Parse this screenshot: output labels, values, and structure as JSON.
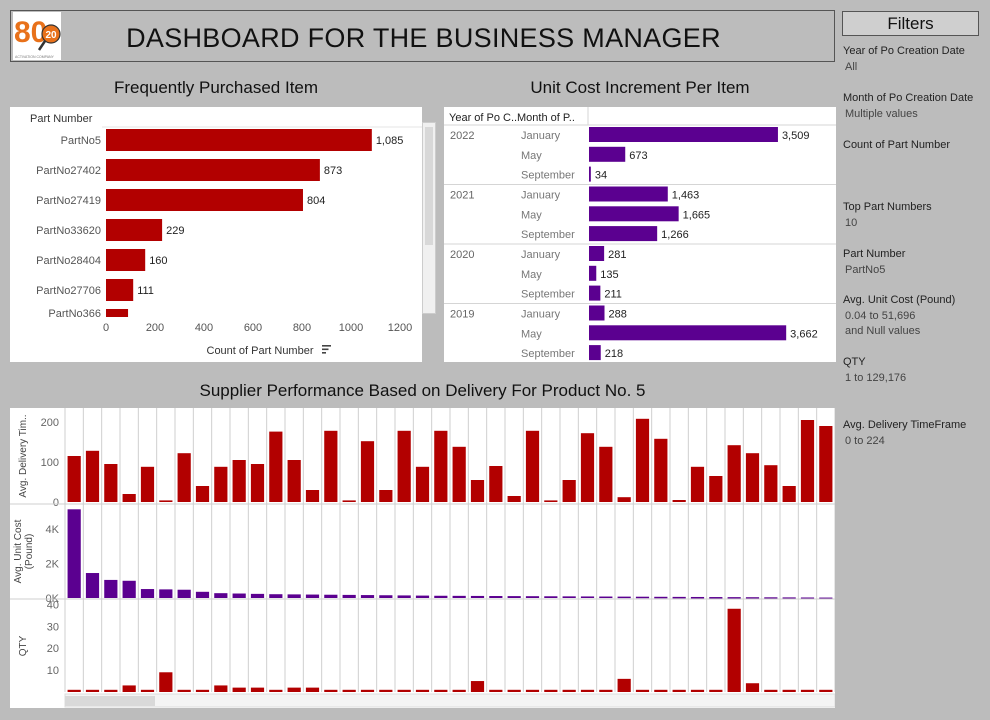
{
  "header": {
    "title": "DASHBOARD FOR THE BUSINESS MANAGER",
    "logo_number": "80",
    "logo_badge": "20",
    "logo_caption": "ACTIVATION COMPANY"
  },
  "filters": {
    "title": "Filters",
    "items": [
      {
        "label": "Year of Po Creation Date",
        "value": "All"
      },
      {
        "label": "Month of Po Creation Date",
        "value": "Multiple values"
      },
      {
        "label": "Count of Part Number",
        "value": ""
      },
      {
        "label": "Top Part Numbers",
        "value": "10"
      },
      {
        "label": "Part Number",
        "value": "PartNo5"
      },
      {
        "label": "Avg. Unit Cost (Pound)",
        "value": "0.04 to 51,696",
        "value2": "and Null values"
      },
      {
        "label": "QTY",
        "value": "1 to 129,176"
      },
      {
        "label": "Avg. Delivery TimeFrame",
        "value": "0 to 224"
      }
    ]
  },
  "colors": {
    "red": "#b20000",
    "purple": "#5b0090",
    "panel": "#ffffff",
    "background": "#bcbcbc",
    "logo_orange": "#e8711a"
  },
  "chart_data": [
    {
      "type": "bar",
      "orientation": "horizontal",
      "title": "Frequently  Purchased Item",
      "row_header": "Part Number",
      "xlabel": "Count of Part Number",
      "categories": [
        "PartNo5",
        "PartNo27402",
        "PartNo27419",
        "PartNo33620",
        "PartNo28404",
        "PartNo27706",
        "PartNo366"
      ],
      "values": [
        1085,
        873,
        804,
        229,
        160,
        111,
        90
      ],
      "data_labels": [
        "1,085",
        "873",
        "804",
        "229",
        "160",
        "111",
        ""
      ],
      "xticks": [
        "0",
        "200",
        "400",
        "600",
        "800",
        "1000",
        "1200"
      ],
      "xlim": [
        0,
        1200
      ],
      "color": "#b20000"
    },
    {
      "type": "bar",
      "orientation": "horizontal",
      "title": "Unit Cost Increment Per Item",
      "col_headers": [
        "Year of Po C..",
        "Month of P.."
      ],
      "groups": [
        {
          "year": "2022",
          "rows": [
            {
              "month": "January",
              "value": 3509,
              "label": "3,509"
            },
            {
              "month": "May",
              "value": 673,
              "label": "673"
            },
            {
              "month": "September",
              "value": 34,
              "label": "34"
            }
          ]
        },
        {
          "year": "2021",
          "rows": [
            {
              "month": "January",
              "value": 1463,
              "label": "1,463"
            },
            {
              "month": "May",
              "value": 1665,
              "label": "1,665"
            },
            {
              "month": "September",
              "value": 1266,
              "label": "1,266"
            }
          ]
        },
        {
          "year": "2020",
          "rows": [
            {
              "month": "January",
              "value": 281,
              "label": "281"
            },
            {
              "month": "May",
              "value": 135,
              "label": "135"
            },
            {
              "month": "September",
              "value": 211,
              "label": "211"
            }
          ]
        },
        {
          "year": "2019",
          "rows": [
            {
              "month": "January",
              "value": 288,
              "label": "288"
            },
            {
              "month": "May",
              "value": 3662,
              "label": "3,662"
            },
            {
              "month": "September",
              "value": 218,
              "label": "218"
            }
          ]
        }
      ],
      "xlim": [
        0,
        3900
      ],
      "color": "#5b0090"
    },
    {
      "type": "bar",
      "title": "Supplier Performance Based on Delivery For Product No. 5",
      "panels": [
        {
          "ylabel": "Avg. Delivery Tim..",
          "yticks": [
            "0",
            "100",
            "200"
          ],
          "ylim": [
            0,
            230
          ],
          "color": "#b20000",
          "values": [
            115,
            128,
            95,
            20,
            88,
            4,
            122,
            40,
            88,
            105,
            95,
            176,
            105,
            30,
            178,
            4,
            152,
            30,
            178,
            88,
            178,
            138,
            55,
            90,
            15,
            178,
            4,
            55,
            172,
            138,
            12,
            208,
            158,
            5,
            88,
            65,
            142,
            122,
            92,
            40,
            205,
            190
          ]
        },
        {
          "ylabel": "Avg. Unit Cost (Pound)",
          "yticks": [
            "0K",
            "2K",
            "4K"
          ],
          "ylim": [
            0,
            5400
          ],
          "color": "#5b0090",
          "values": [
            5150,
            1450,
            1050,
            1000,
            520,
            500,
            480,
            360,
            280,
            260,
            240,
            220,
            210,
            200,
            190,
            180,
            170,
            160,
            150,
            140,
            130,
            125,
            120,
            115,
            110,
            105,
            100,
            95,
            90,
            85,
            80,
            75,
            70,
            65,
            60,
            55,
            50,
            45,
            40,
            35,
            30,
            25
          ]
        },
        {
          "ylabel": "QTY",
          "yticks": [
            "10",
            "20",
            "30",
            "40"
          ],
          "ylim": [
            0,
            42
          ],
          "color": "#b20000",
          "values": [
            1,
            1,
            1,
            3,
            1,
            9,
            1,
            1,
            3,
            2,
            2,
            1,
            2,
            2,
            1,
            1,
            1,
            1,
            1,
            1,
            1,
            1,
            5,
            1,
            1,
            1,
            1,
            1,
            1,
            1,
            6,
            1,
            1,
            1,
            1,
            1,
            38,
            4,
            1,
            1,
            1,
            1
          ]
        }
      ]
    }
  ]
}
